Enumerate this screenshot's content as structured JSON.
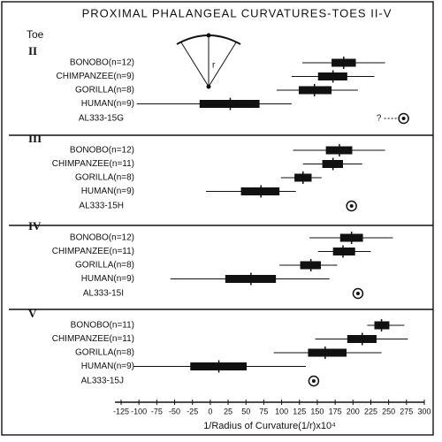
{
  "chart_data": {
    "type": "range",
    "title": "PROXIMAL PHALANGEAL CURVATURES-TOES II-V",
    "group_label": "Toe",
    "x_label": "1/Radius of Curvature(1/r)x10⁴",
    "diagram_label": "r",
    "xlim": [
      -125,
      300
    ],
    "xticks": [
      -125,
      -100,
      -75,
      -50,
      -25,
      0,
      25,
      50,
      75,
      100,
      125,
      150,
      175,
      200,
      225,
      250,
      275,
      300
    ],
    "panels": [
      {
        "label": "II",
        "fossil": {
          "name": "AL333-15G",
          "value": 271,
          "annotation": "?"
        },
        "rows": [
          {
            "name": "BONOBO(n=12)",
            "min": 129,
            "low": 170,
            "mean": 187,
            "high": 204,
            "max": 245
          },
          {
            "name": "CHIMPANZEE(n=9)",
            "min": 114,
            "low": 151,
            "mean": 172,
            "high": 192,
            "max": 230
          },
          {
            "name": "GORILLA(n=8)",
            "min": 93,
            "low": 124,
            "mean": 146,
            "high": 170,
            "max": 207
          },
          {
            "name": "HUMAN(n=9)",
            "min": -103,
            "low": -15,
            "mean": 28,
            "high": 69,
            "max": 114
          }
        ]
      },
      {
        "label": "III",
        "fossil": {
          "name": "AL333-15H",
          "value": 198
        },
        "rows": [
          {
            "name": "BONOBO(n=12)",
            "min": 116,
            "low": 162,
            "mean": 181,
            "high": 199,
            "max": 245
          },
          {
            "name": "CHIMPANZEE(n=11)",
            "min": 130,
            "low": 157,
            "mean": 172,
            "high": 186,
            "max": 213
          },
          {
            "name": "GORILLA(n=8)",
            "min": 99,
            "low": 118,
            "mean": 130,
            "high": 142,
            "max": 156
          },
          {
            "name": "HUMAN(n=9)",
            "min": -6,
            "low": 43,
            "mean": 71,
            "high": 97,
            "max": 120
          }
        ]
      },
      {
        "label": "IV",
        "fossil": {
          "name": "AL333-15I",
          "value": 207
        },
        "rows": [
          {
            "name": "BONOBO(n=12)",
            "min": 139,
            "low": 182,
            "mean": 198,
            "high": 214,
            "max": 256
          },
          {
            "name": "CHIMPANZEE(n=11)",
            "min": 151,
            "low": 172,
            "mean": 186,
            "high": 203,
            "max": 225
          },
          {
            "name": "GORILLA(n=8)",
            "min": 97,
            "low": 126,
            "mean": 141,
            "high": 155,
            "max": 178
          },
          {
            "name": "HUMAN(n=9)",
            "min": -56,
            "low": 21,
            "mean": 57,
            "high": 92,
            "max": 167
          }
        ]
      },
      {
        "label": "V",
        "fossil": {
          "name": "AL333-15J",
          "value": 145
        },
        "rows": [
          {
            "name": "BONOBO(n=11)",
            "min": 220,
            "low": 230,
            "mean": 240,
            "high": 251,
            "max": 272
          },
          {
            "name": "CHIMPANZEE(n=11)",
            "min": 147,
            "low": 192,
            "mean": 213,
            "high": 233,
            "max": 277
          },
          {
            "name": "GORILLA(n=8)",
            "min": 89,
            "low": 137,
            "mean": 161,
            "high": 191,
            "max": 240
          },
          {
            "name": "HUMAN(n=9)",
            "min": -108,
            "low": -28,
            "mean": 12,
            "high": 51,
            "max": 134
          }
        ]
      }
    ]
  }
}
